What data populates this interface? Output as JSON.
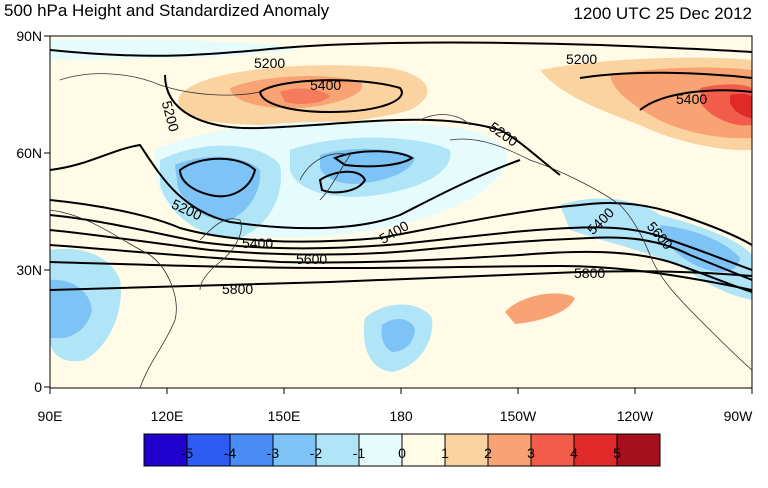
{
  "title": "500 hPa Height and Standardized Anomaly",
  "datetime": "1200 UTC 25 Dec 2012",
  "lat_labels": [
    "90N",
    "60N",
    "30N",
    "0"
  ],
  "lon_labels": [
    "90E",
    "120E",
    "150E",
    "180",
    "150W",
    "120W",
    "90W"
  ],
  "contour_labels": [
    "5200",
    "5400",
    "5200",
    "5200",
    "5400",
    "5200",
    "5200",
    "5400",
    "5600",
    "5800",
    "5800",
    "5400",
    "5600",
    "5400"
  ],
  "colorbar": {
    "colors": [
      "#1f00cc",
      "#2e5cf0",
      "#4a8cf5",
      "#7ec3f5",
      "#b0e4f7",
      "#e6fbfc",
      "#fffbe6",
      "#fad3a0",
      "#f7a374",
      "#f25c4a",
      "#e02a2a",
      "#a50f1e"
    ],
    "labels": [
      "-5",
      "-4",
      "-3",
      "-2",
      "-1",
      "0",
      "1",
      "2",
      "3",
      "4",
      "5"
    ]
  }
}
